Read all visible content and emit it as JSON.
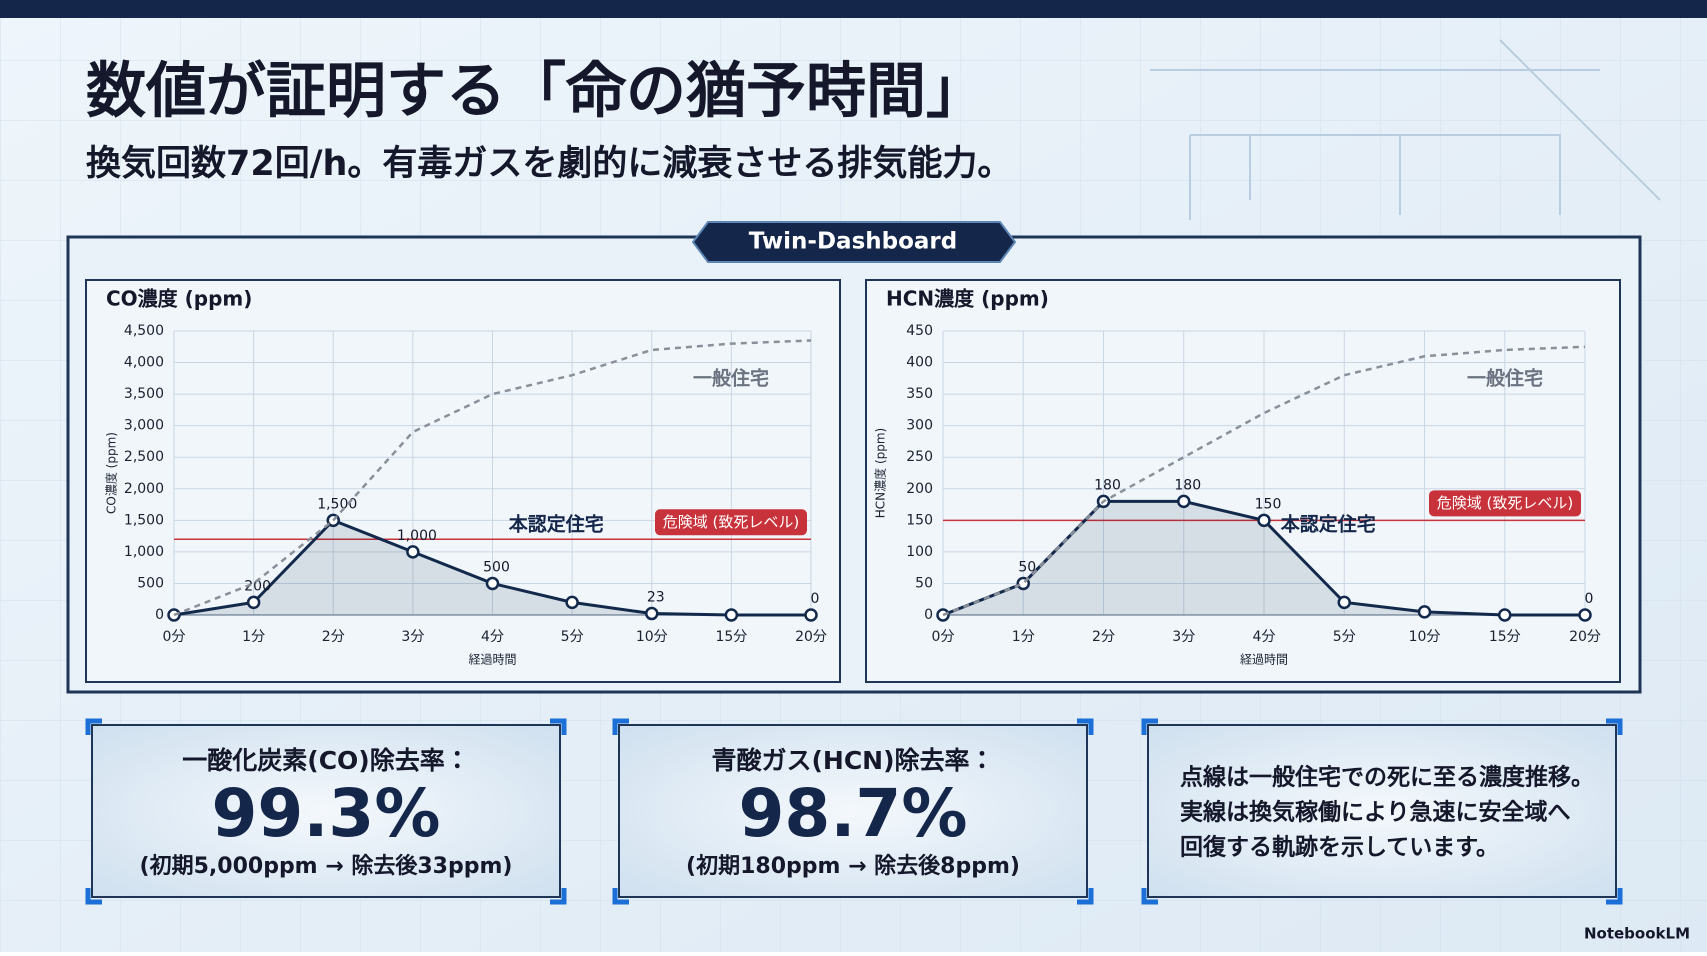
{
  "title": "数値が証明する「命の猶予時間」",
  "subtitle": "換気回数72回/h。有毒ガスを劇的に減衰させる排気能力。",
  "dashboard_label": "Twin-Dashboard",
  "chart_data": [
    {
      "type": "line",
      "title": "CO濃度 (ppm)",
      "xlabel": "経過時間",
      "ylabel": "CO濃度 (ppm)",
      "categories": [
        "0分",
        "1分",
        "2分",
        "3分",
        "4分",
        "5分",
        "10分",
        "15分",
        "20分"
      ],
      "series": [
        {
          "name": "本認定住宅",
          "color": "#13294b",
          "style": "solid",
          "values": [
            0,
            200,
            1500,
            1000,
            500,
            200,
            23,
            0,
            0
          ],
          "value_labels": [
            null,
            "200",
            "1,500",
            "1,000",
            "500",
            null,
            "23",
            null,
            "0"
          ]
        },
        {
          "name": "一般住宅",
          "color": "#8a9099",
          "style": "dashed",
          "values": [
            0,
            500,
            1500,
            2900,
            3500,
            3800,
            4200,
            4300,
            4350
          ]
        }
      ],
      "threshold": {
        "value": 1200,
        "label": "危険域 (致死レベル)",
        "color": "#c8323a"
      },
      "ylim": [
        0,
        4500
      ],
      "yticks": [
        0,
        500,
        {
          "value": 1000,
          "label": "1,000"
        },
        {
          "value": 1500,
          "label": "1,500"
        },
        {
          "value": 2000,
          "label": "2,000"
        },
        {
          "value": 2500,
          "label": "2,500"
        },
        {
          "value": 3000,
          "label": "3,000"
        },
        {
          "value": 3500,
          "label": "3,500"
        },
        {
          "value": 4000,
          "label": "4,000"
        },
        {
          "value": 4500,
          "label": "4,500"
        }
      ],
      "grid": true
    },
    {
      "type": "line",
      "title": "HCN濃度 (ppm)",
      "xlabel": "経過時間",
      "ylabel": "HCN濃度 (ppm)",
      "categories": [
        "0分",
        "1分",
        "2分",
        "3分",
        "4分",
        "5分",
        "10分",
        "15分",
        "20分"
      ],
      "series": [
        {
          "name": "本認定住宅",
          "color": "#13294b",
          "style": "solid",
          "values": [
            0,
            50,
            180,
            180,
            150,
            20,
            5,
            0,
            0
          ],
          "value_labels": [
            null,
            "50",
            "180",
            "180",
            "150",
            null,
            null,
            null,
            "0"
          ]
        },
        {
          "name": "一般住宅",
          "color": "#8a9099",
          "style": "dashed",
          "values": [
            0,
            50,
            180,
            250,
            320,
            380,
            410,
            420,
            425
          ]
        }
      ],
      "threshold": {
        "value": 150,
        "label": "危険域 (致死レベル)",
        "color": "#c8323a"
      },
      "ylim": [
        0,
        450
      ],
      "yticks": [
        0,
        50,
        100,
        150,
        200,
        250,
        300,
        350,
        400,
        450
      ],
      "grid": true
    }
  ],
  "cards": [
    {
      "label": "一酸化炭素(CO)除去率：",
      "value": "99.3%",
      "note": "(初期5,000ppm → 除去後33ppm)"
    },
    {
      "label": "青酸ガス(HCN)除去率：",
      "value": "98.7%",
      "note": "(初期180ppm → 除去後8ppm)"
    }
  ],
  "explanation": [
    "点線は一般住宅での死に至る濃度推移。",
    "実線は換気稼働により急速に安全域へ",
    "回復する軌跡を示しています。"
  ],
  "footer": "NotebookLM"
}
